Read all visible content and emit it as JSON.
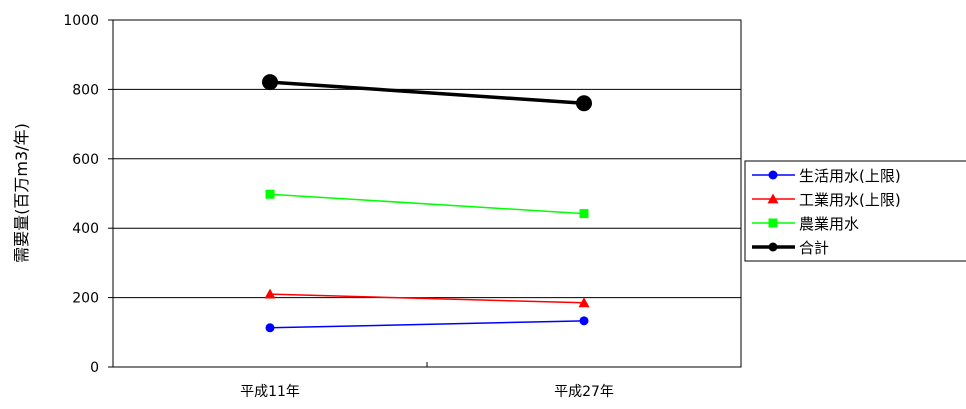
{
  "chart_data": {
    "type": "line",
    "title": "",
    "xlabel": "",
    "ylabel": "需要量(百万m3/年)",
    "categories": [
      "平成11年",
      "平成27年"
    ],
    "ylim": [
      0,
      1000
    ],
    "yticks": [
      0,
      200,
      400,
      600,
      800,
      1000
    ],
    "grid": true,
    "legend_position": "right",
    "series": [
      {
        "name": "生活用水(上限)",
        "values": [
          113,
          133
        ],
        "color": "#0000ff",
        "marker": "circle",
        "bold": false
      },
      {
        "name": "工業用水(上限)",
        "values": [
          210,
          185
        ],
        "color": "#ff0000",
        "marker": "triangle",
        "bold": false
      },
      {
        "name": "農業用水",
        "values": [
          498,
          442
        ],
        "color": "#00ff00",
        "marker": "square",
        "bold": false
      },
      {
        "name": "合計",
        "values": [
          821,
          760
        ],
        "color": "#000000",
        "marker": "circle",
        "bold": true
      }
    ]
  }
}
